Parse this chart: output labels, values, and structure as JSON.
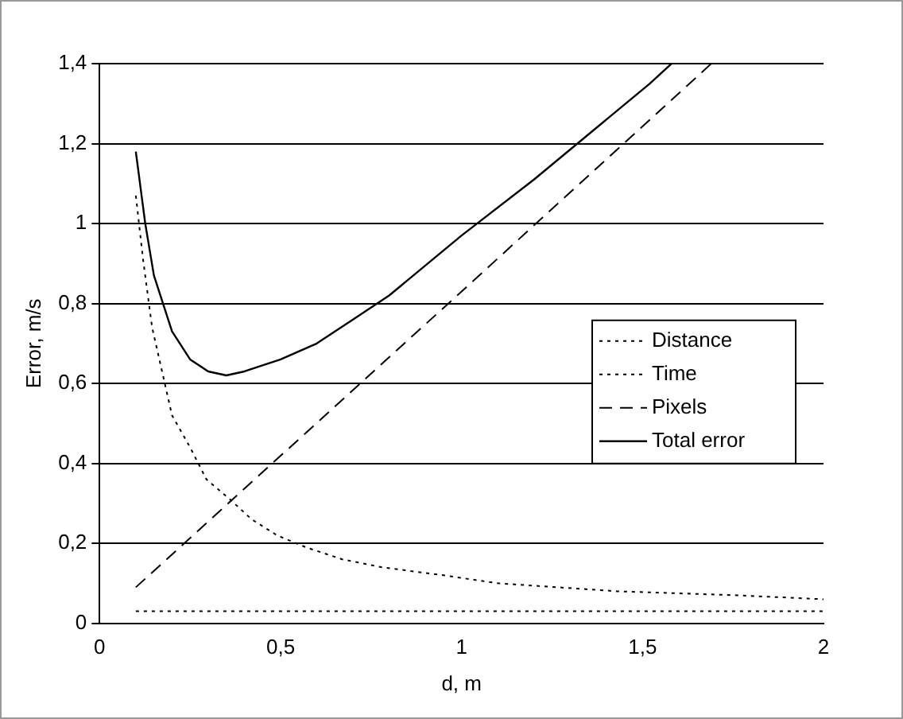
{
  "chart_data": {
    "type": "line",
    "xlabel": "d, m",
    "ylabel": "Error, m/s",
    "series": [
      {
        "name": "Distance",
        "color": "#000000",
        "line_style": "dotted",
        "x": [
          0.1,
          0.12,
          0.145,
          0.18,
          0.2,
          0.25,
          0.295,
          0.36,
          0.42,
          0.49,
          0.57,
          0.67,
          0.78,
          0.95,
          1.1,
          1.43,
          1.76,
          2.0
        ],
        "values": [
          1.07,
          0.91,
          0.74,
          0.6,
          0.52,
          0.44,
          0.36,
          0.31,
          0.26,
          0.22,
          0.19,
          0.16,
          0.14,
          0.12,
          0.1,
          0.08,
          0.07,
          0.06
        ]
      },
      {
        "name": "Time",
        "color": "#000000",
        "line_style": "dotted",
        "x": [
          0.1,
          2.0
        ],
        "values": [
          0.03,
          0.03
        ]
      },
      {
        "name": "Pixels",
        "color": "#000000",
        "line_style": "dashed",
        "x": [
          0.1,
          1.0,
          1.69
        ],
        "values": [
          0.09,
          0.83,
          1.4
        ]
      },
      {
        "name": "Total error",
        "color": "#000000",
        "line_style": "solid",
        "x": [
          0.1,
          0.126,
          0.15,
          0.2,
          0.25,
          0.3,
          0.35,
          0.4,
          0.5,
          0.6,
          0.7,
          0.8,
          1.0,
          1.2,
          1.32,
          1.52,
          1.58
        ],
        "values": [
          1.18,
          1.0,
          0.87,
          0.73,
          0.66,
          0.63,
          0.62,
          0.63,
          0.66,
          0.7,
          0.76,
          0.82,
          0.97,
          1.11,
          1.2,
          1.35,
          1.4
        ]
      }
    ],
    "xlim": [
      0,
      2
    ],
    "xticks": [
      0,
      {
        "value": 0.5,
        "label": "0,5"
      },
      1,
      {
        "value": 1.5,
        "label": "1,5"
      },
      2
    ],
    "ylim": [
      0,
      1.4
    ],
    "yticks": [
      0,
      {
        "value": 0.2,
        "label": "0,2"
      },
      {
        "value": 0.4,
        "label": "0,4"
      },
      {
        "value": 0.6,
        "label": "0,6"
      },
      {
        "value": 0.8,
        "label": "0,8"
      },
      1,
      {
        "value": 1.2,
        "label": "1,2"
      },
      {
        "value": 1.4,
        "label": "1,4"
      }
    ],
    "grid": "y",
    "legend": "right",
    "marker": "none"
  }
}
